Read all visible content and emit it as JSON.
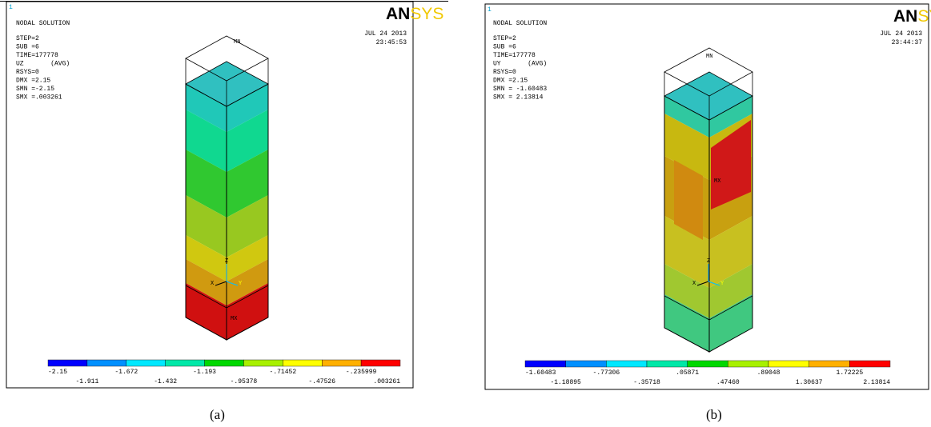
{
  "panels": [
    {
      "caption": "(a)",
      "corner_number": "1",
      "logo": [
        "AN",
        "SYS"
      ],
      "header": "NODAL SOLUTION",
      "info": [
        "STEP=2",
        "SUB =6",
        "TIME=177778",
        "UZ       (AVG)",
        "RSYS=0",
        "DMX =2.15",
        "SMN =-2.15",
        "SMX =.003261"
      ],
      "date": "JUL 24 2013",
      "time": "23:45:53",
      "markers": {
        "min": "MN",
        "max": "MX"
      },
      "axes": [
        "X",
        "Y",
        "Z"
      ],
      "legend": {
        "colors": [
          "#0000ff",
          "#0090ff",
          "#00e8ff",
          "#00e8a8",
          "#00d800",
          "#a8f000",
          "#ffff00",
          "#ffb000",
          "#ff0000"
        ],
        "labels": [
          "-2.15",
          "-1.911",
          "-1.672",
          "-1.432",
          "-1.193",
          "-.95378",
          "-.71452",
          "-.47526",
          "-.235999",
          ".003261"
        ]
      }
    },
    {
      "caption": "(b)",
      "corner_number": "1",
      "logo": [
        "AN",
        "SYS"
      ],
      "header": "NODAL SOLUTION",
      "info": [
        "STEP=2",
        "SUB =6",
        "TIME=177778",
        "UY       (AVG)",
        "RSYS=0",
        "DMX =2.15",
        "SMN = -1.60483",
        "SMX = 2.13814"
      ],
      "date": "JUL 24 2013",
      "time": "23:44:37",
      "markers": {
        "min": "MN",
        "max": "MX"
      },
      "axes": [
        "X",
        "Y",
        "Z"
      ],
      "legend": {
        "colors": [
          "#0000ff",
          "#0090ff",
          "#00e8ff",
          "#00e8a8",
          "#00d800",
          "#a8f000",
          "#ffff00",
          "#ffb000",
          "#ff0000"
        ],
        "labels": [
          "-1.60483",
          "-1.18895",
          "-.77306",
          "-.35718",
          ".05871",
          ".47460",
          ".89048",
          "1.30637",
          "1.72225",
          "2.13814"
        ]
      }
    }
  ]
}
